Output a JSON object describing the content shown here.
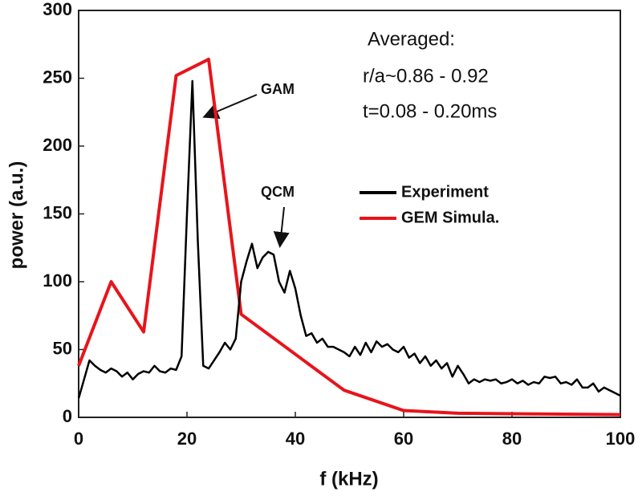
{
  "chart_data": {
    "type": "line",
    "xlabel": "f (kHz)",
    "ylabel": "power (a.u.)",
    "xlim": [
      0,
      100
    ],
    "ylim": [
      0,
      300
    ],
    "xticks": [
      0,
      20,
      40,
      60,
      80,
      100
    ],
    "yticks": [
      0,
      50,
      100,
      150,
      200,
      250,
      300
    ],
    "grid": false,
    "annotations": [
      "Averaged:",
      "r/a~0.86 - 0.92",
      "t=0.08 - 0.20ms",
      "GAM",
      "QCM"
    ],
    "series": [
      {
        "name": "Experiment",
        "color": "#000000",
        "x": [
          0,
          1,
          2,
          3,
          4,
          5,
          6,
          7,
          8,
          9,
          10,
          11,
          12,
          13,
          14,
          15,
          16,
          17,
          18,
          19,
          20,
          21,
          22,
          23,
          24,
          25,
          26,
          27,
          28,
          29,
          30,
          31,
          32,
          33,
          34,
          35,
          36,
          37,
          38,
          39,
          40,
          41,
          42,
          43,
          44,
          45,
          46,
          47,
          48,
          49,
          50,
          51,
          52,
          53,
          54,
          55,
          56,
          57,
          58,
          59,
          60,
          61,
          62,
          63,
          64,
          65,
          66,
          67,
          68,
          69,
          70,
          71,
          72,
          73,
          74,
          75,
          76,
          77,
          78,
          79,
          80,
          81,
          82,
          83,
          84,
          85,
          86,
          87,
          88,
          89,
          90,
          91,
          92,
          93,
          94,
          95,
          96,
          97,
          98,
          99,
          100
        ],
        "values": [
          14,
          28,
          42,
          38,
          35,
          33,
          36,
          34,
          30,
          33,
          28,
          32,
          34,
          33,
          38,
          34,
          33,
          36,
          35,
          45,
          150,
          248,
          130,
          38,
          36,
          42,
          48,
          55,
          50,
          58,
          100,
          115,
          128,
          110,
          118,
          122,
          120,
          100,
          92,
          108,
          95,
          75,
          60,
          62,
          55,
          58,
          52,
          52,
          50,
          48,
          45,
          52,
          46,
          55,
          48,
          56,
          52,
          54,
          50,
          48,
          52,
          44,
          47,
          40,
          45,
          38,
          42,
          36,
          40,
          30,
          38,
          32,
          25,
          28,
          26,
          28,
          27,
          28,
          25,
          26,
          28,
          25,
          27,
          24,
          26,
          25,
          30,
          29,
          30,
          25,
          26,
          24,
          28,
          22,
          22,
          25,
          19,
          22,
          20,
          18,
          16
        ]
      },
      {
        "name": "GEM Simula.",
        "color": "#e8141b",
        "x": [
          0,
          6,
          12,
          18,
          24,
          30,
          49,
          60,
          70,
          100
        ],
        "values": [
          38,
          100,
          63,
          252,
          264,
          76,
          20,
          5,
          3,
          2
        ]
      }
    ]
  }
}
